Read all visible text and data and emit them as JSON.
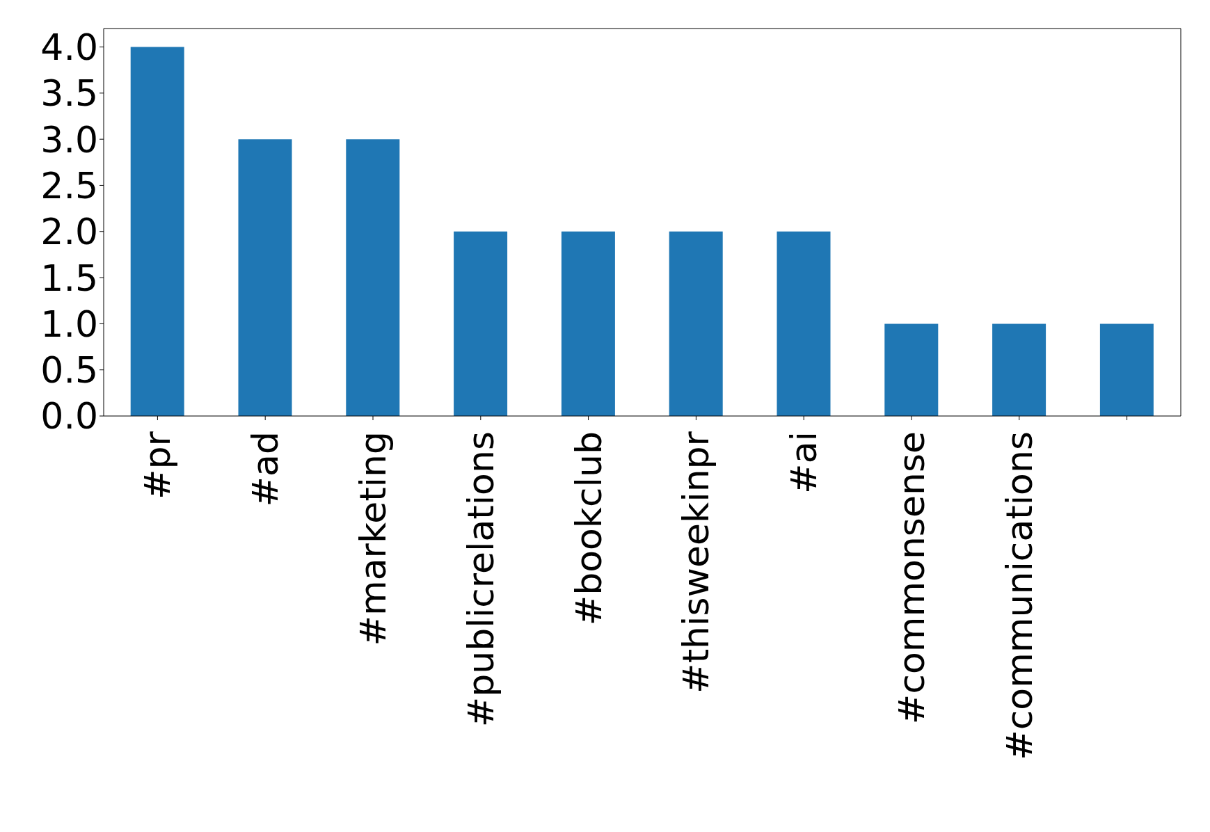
{
  "chart_data": {
    "type": "bar",
    "categories": [
      "#pr",
      "#ad",
      "#marketing",
      "#publicrelations",
      "#bookclub",
      "#thisweekinpr",
      "#ai",
      "#commonsense",
      "#communications",
      null
    ],
    "values": [
      4,
      3,
      3,
      2,
      2,
      2,
      2,
      1,
      1,
      1
    ],
    "color": "#1f77b4",
    "ylim": [
      0,
      4.2
    ],
    "yticks": [
      {
        "value": 0,
        "label": "0.0"
      },
      {
        "value": 0.5,
        "label": "0.5"
      },
      {
        "value": 1,
        "label": "1.0"
      },
      {
        "value": 1.5,
        "label": "1.5"
      },
      {
        "value": 2,
        "label": "2.0"
      },
      {
        "value": 2.5,
        "label": "2.5"
      },
      {
        "value": 3,
        "label": "3.0"
      },
      {
        "value": 3.5,
        "label": "3.5"
      },
      {
        "value": 4,
        "label": "4.0"
      }
    ],
    "grid": false,
    "legend": false
  }
}
